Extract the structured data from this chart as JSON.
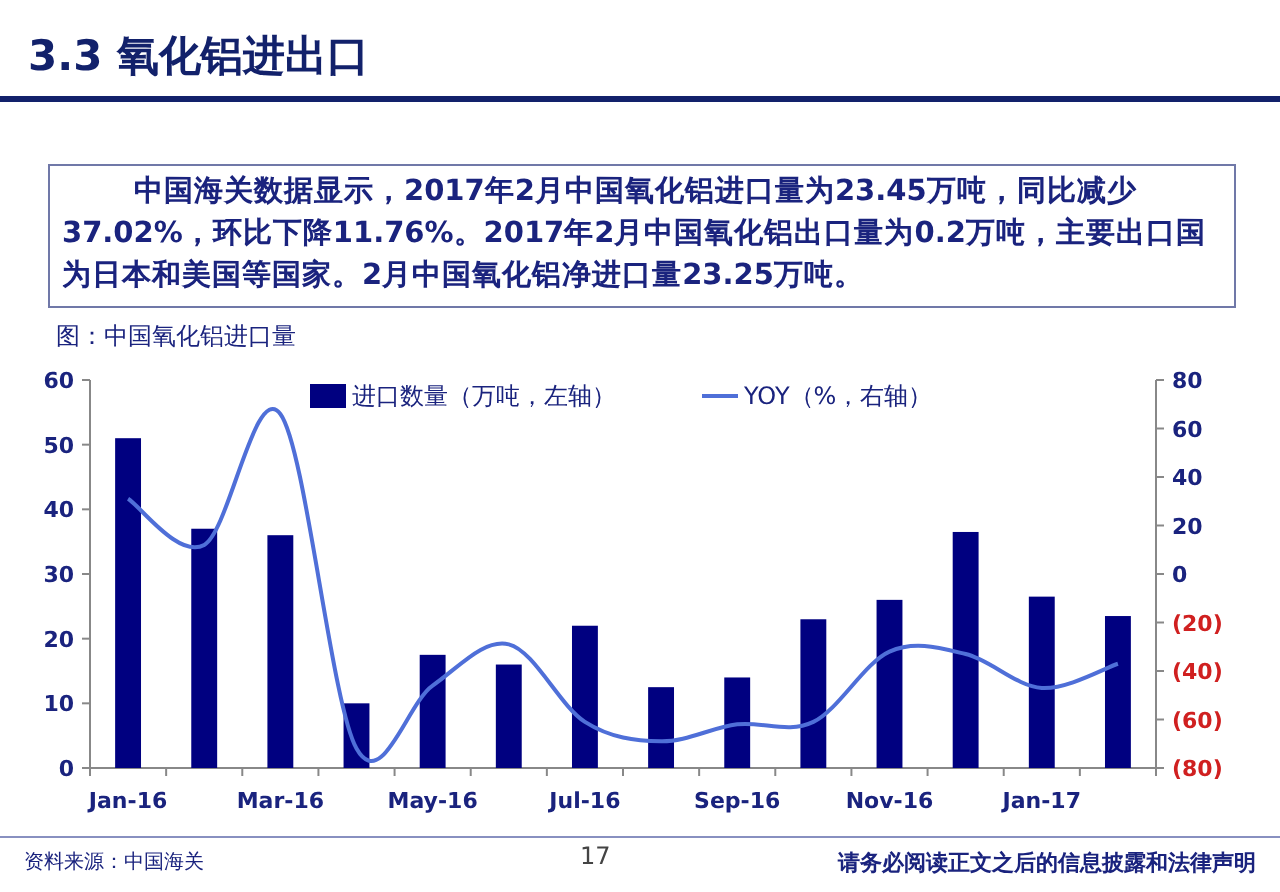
{
  "chart_data": {
    "type": "bar",
    "title": "3.3 氧化铝进出口",
    "subtitle": "图：中国氧化铝进口量",
    "annotations": [
      "中国海关数据显示，2017年2月中国氧化铝进口量为23.45万吨，同比减少37.02%，环比下降11.76%。2017年2月中国氧化铝出口量为0.2万吨，主要出口国为日本和美国等国家。2月中国氧化铝净进口量23.25万吨。",
      "资料来源：中国海关",
      "17",
      "请务必阅读正文之后的信息披露和法律声明"
    ],
    "categories": [
      "Jan-16",
      null,
      "Mar-16",
      null,
      "May-16",
      null,
      "Jul-16",
      null,
      "Sep-16",
      null,
      "Nov-16",
      null,
      "Jan-17",
      null
    ],
    "series": [
      {
        "name": "进口数量（万吨，左轴）",
        "color": "#000080",
        "values": [
          51,
          37,
          36,
          10,
          17.5,
          16,
          22,
          12.5,
          14,
          23,
          26,
          36.5,
          26.5,
          23.5
        ]
      },
      {
        "name": "YOY（%，右轴）",
        "type": "line",
        "axis": "y2",
        "color": "#4f6fd8",
        "values": [
          31,
          12,
          66,
          -72,
          -46,
          -29,
          -61,
          -69,
          -62,
          -61,
          -32,
          -33,
          -47,
          -37
        ]
      }
    ],
    "ylim": [
      0,
      60
    ],
    "yticks": [
      0,
      10,
      20,
      30,
      40,
      50,
      60
    ],
    "y2lim": [
      -80,
      80
    ],
    "y2ticks": [
      {
        "value": -80,
        "label": "(80)"
      },
      {
        "value": -60,
        "label": "(60)"
      },
      {
        "value": -40,
        "label": "(40)"
      },
      {
        "value": -20,
        "label": "(20)"
      },
      0,
      20,
      40,
      60,
      80
    ],
    "legend": "top",
    "grid": false,
    "marker": "none",
    "line_style": "solid"
  }
}
